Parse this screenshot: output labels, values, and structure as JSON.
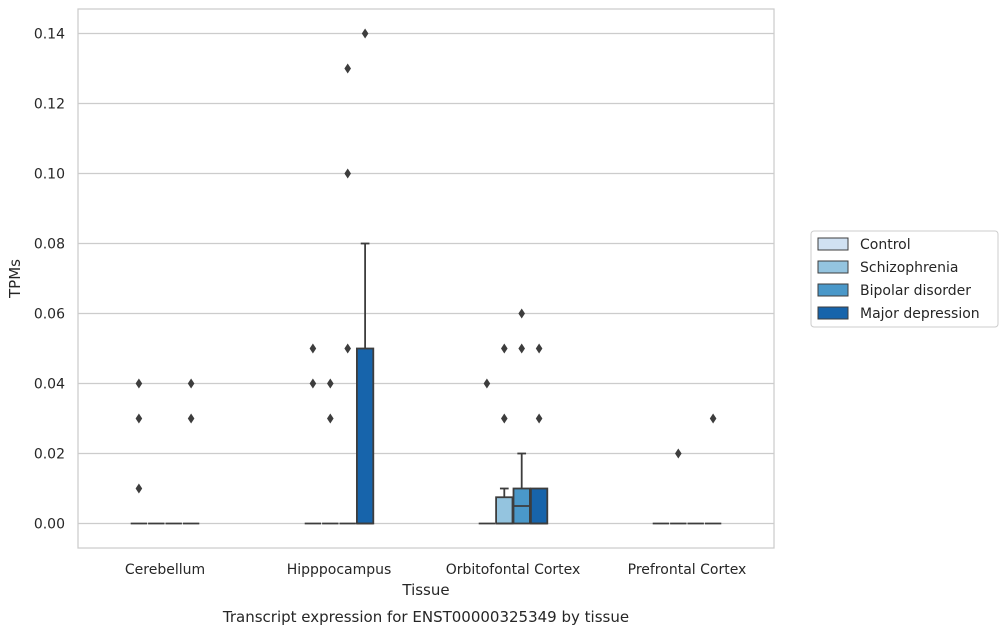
{
  "chart_data": {
    "type": "box",
    "title": "",
    "caption": "Transcript expression for ENST00000325349 by tissue",
    "xlabel": "Tissue",
    "ylabel": "TPMs",
    "ylim": [
      -0.007,
      0.147
    ],
    "yticks": [
      "0.00",
      "0.02",
      "0.04",
      "0.06",
      "0.08",
      "0.10",
      "0.12",
      "0.14"
    ],
    "ytick_values": [
      0,
      0.02,
      0.04,
      0.06,
      0.08,
      0.1,
      0.12,
      0.14
    ],
    "grid": true,
    "legend_position": "right",
    "categories": [
      "Cerebellum",
      "Hipppocampus",
      "Orbitofontal Cortex",
      "Prefrontal Cortex"
    ],
    "series": [
      {
        "name": "Control",
        "color": "#d0e1f2",
        "boxes": [
          {
            "q1": 0,
            "median": 0,
            "q3": 0,
            "whisker_low": 0,
            "whisker_high": 0,
            "outliers": [
              0.04,
              0.03,
              0.01
            ]
          },
          {
            "q1": 0,
            "median": 0,
            "q3": 0,
            "whisker_low": 0,
            "whisker_high": 0,
            "outliers": [
              0.05,
              0.04
            ]
          },
          {
            "q1": 0,
            "median": 0,
            "q3": 0,
            "whisker_low": 0,
            "whisker_high": 0,
            "outliers": [
              0.04
            ]
          },
          {
            "q1": 0,
            "median": 0,
            "q3": 0,
            "whisker_low": 0,
            "whisker_high": 0,
            "outliers": []
          }
        ]
      },
      {
        "name": "Schizophrenia",
        "color": "#94c4df",
        "boxes": [
          {
            "q1": 0,
            "median": 0,
            "q3": 0,
            "whisker_low": 0,
            "whisker_high": 0,
            "outliers": []
          },
          {
            "q1": 0,
            "median": 0,
            "q3": 0,
            "whisker_low": 0,
            "whisker_high": 0,
            "outliers": [
              0.04,
              0.03
            ]
          },
          {
            "q1": 0,
            "median": 0,
            "q3": 0.0075,
            "whisker_low": 0,
            "whisker_high": 0.01,
            "outliers": [
              0.05,
              0.03
            ]
          },
          {
            "q1": 0,
            "median": 0,
            "q3": 0,
            "whisker_low": 0,
            "whisker_high": 0,
            "outliers": [
              0.02
            ]
          }
        ]
      },
      {
        "name": "Bipolar disorder",
        "color": "#4a98c9",
        "boxes": [
          {
            "q1": 0,
            "median": 0,
            "q3": 0,
            "whisker_low": 0,
            "whisker_high": 0,
            "outliers": []
          },
          {
            "q1": 0,
            "median": 0,
            "q3": 0,
            "whisker_low": 0,
            "whisker_high": 0,
            "outliers": [
              0.13,
              0.1,
              0.05
            ]
          },
          {
            "q1": 0,
            "median": 0.005,
            "q3": 0.01,
            "whisker_low": 0,
            "whisker_high": 0.02,
            "outliers": [
              0.06,
              0.05
            ]
          },
          {
            "q1": 0,
            "median": 0,
            "q3": 0,
            "whisker_low": 0,
            "whisker_high": 0,
            "outliers": []
          }
        ]
      },
      {
        "name": "Major depression",
        "color": "#1764ab",
        "boxes": [
          {
            "q1": 0,
            "median": 0,
            "q3": 0,
            "whisker_low": 0,
            "whisker_high": 0,
            "outliers": [
              0.04,
              0.03
            ]
          },
          {
            "q1": 0,
            "median": 0,
            "q3": 0.05,
            "whisker_low": 0,
            "whisker_high": 0.08,
            "outliers": [
              0.14
            ]
          },
          {
            "q1": 0,
            "median": 0,
            "q3": 0.01,
            "whisker_low": 0,
            "whisker_high": 0.01,
            "outliers": [
              0.05,
              0.03
            ]
          },
          {
            "q1": 0,
            "median": 0,
            "q3": 0,
            "whisker_low": 0,
            "whisker_high": 0,
            "outliers": [
              0.03
            ]
          }
        ]
      }
    ]
  }
}
